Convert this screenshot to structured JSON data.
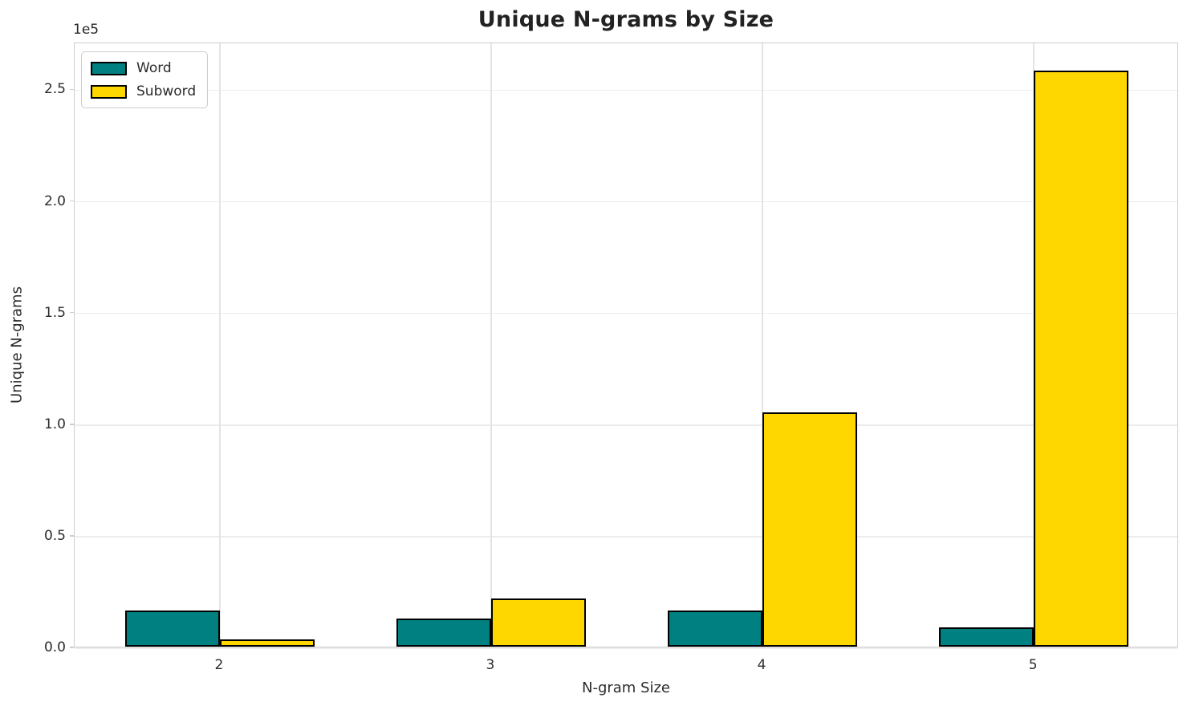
{
  "chart_data": {
    "type": "bar",
    "title": "Unique N-grams by Size",
    "xlabel": "N-gram Size",
    "ylabel": "Unique N-grams",
    "y_offset_label": "1e5",
    "categories": [
      "2",
      "3",
      "4",
      "5"
    ],
    "series": [
      {
        "name": "Word",
        "color": "#008080",
        "values": [
          16000,
          12700,
          16000,
          8600
        ]
      },
      {
        "name": "Subword",
        "color": "#FFD700",
        "values": [
          3300,
          21700,
          105000,
          258000
        ]
      }
    ],
    "bar_edge_color": "#000000",
    "bar_width_units": 0.35,
    "xlim": [
      1.465,
      5.535
    ],
    "ylim": [
      0,
      271000
    ],
    "yticks": [
      {
        "value": 0,
        "label": "0.0"
      },
      {
        "value": 50000,
        "label": "0.5"
      },
      {
        "value": 100000,
        "label": "1.0"
      },
      {
        "value": 150000,
        "label": "1.5"
      },
      {
        "value": 200000,
        "label": "2.0"
      },
      {
        "value": 250000,
        "label": "2.5"
      }
    ],
    "grid": true,
    "legend_position": "upper left"
  }
}
